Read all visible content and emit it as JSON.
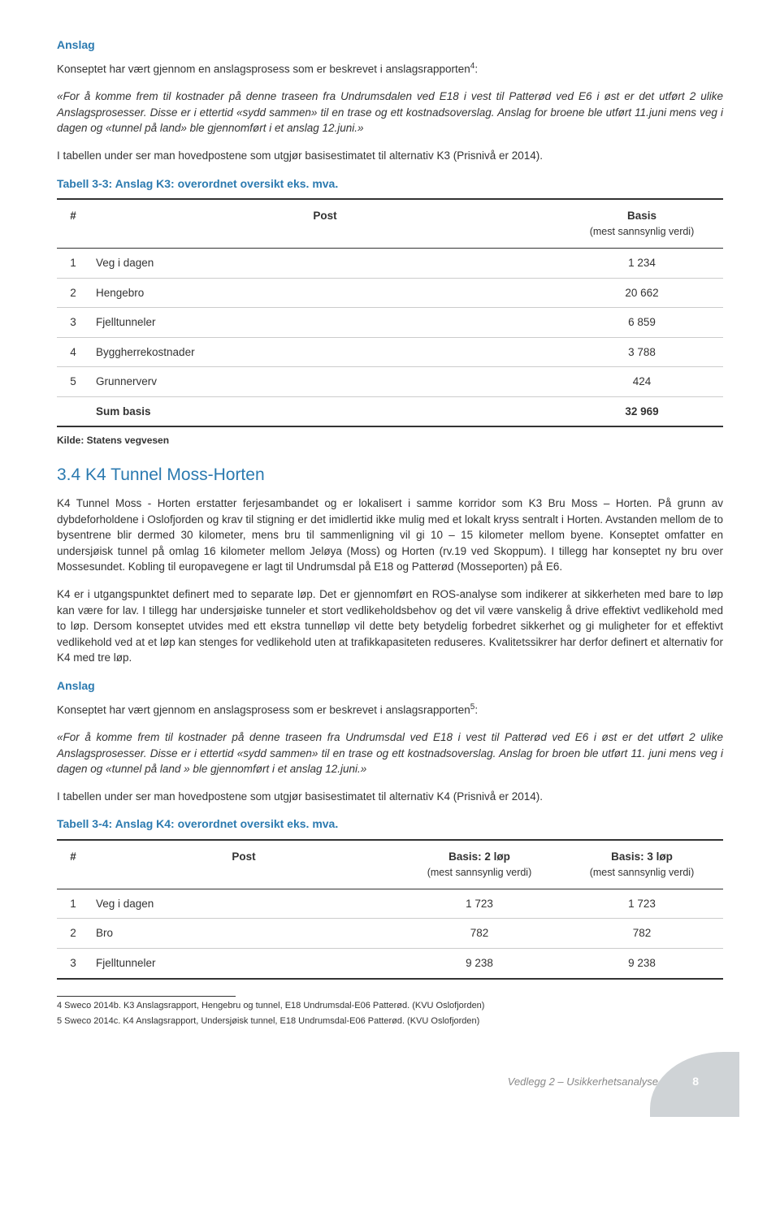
{
  "anslag1": {
    "heading": "Anslag",
    "p1": "Konseptet har vært gjennom en anslagsprosess som er beskrevet i anslagsrapporten",
    "sup1": "4",
    "p1b": ":",
    "quote": "«For å komme frem til kostnader på denne traseen fra Undrumsdalen ved E18 i vest til Patterød ved E6 i øst er det utført 2 ulike Anslagsprosesser. Disse er i ettertid «sydd sammen» til en trase og ett kostnadsoverslag. Anslag for broene ble utført 11.juni mens veg i dagen og «tunnel på land» ble gjennomført i et anslag 12.juni.»",
    "p2": "I tabellen under ser man hovedpostene som utgjør basisestimatet til alternativ K3 (Prisnivå er 2014)."
  },
  "table33": {
    "caption": "Tabell 3-3: Anslag K3: overordnet oversikt eks. mva.",
    "head_num": "#",
    "head_post": "Post",
    "head_basis": "Basis",
    "head_basis_sub": "(mest sannsynlig verdi)",
    "rows": [
      {
        "n": "1",
        "post": "Veg i dagen",
        "val": "1 234"
      },
      {
        "n": "2",
        "post": "Hengebro",
        "val": "20 662"
      },
      {
        "n": "3",
        "post": "Fjelltunneler",
        "val": "6 859"
      },
      {
        "n": "4",
        "post": "Byggherrekostnader",
        "val": "3 788"
      },
      {
        "n": "5",
        "post": "Grunnerverv",
        "val": "424"
      }
    ],
    "sum_label": "Sum basis",
    "sum_val": "32 969",
    "kilde": "Kilde: Statens vegvesen"
  },
  "section34": {
    "heading": "3.4 K4 Tunnel Moss-Horten",
    "p1": "K4 Tunnel Moss - Horten erstatter ferjesambandet og er lokalisert i samme korridor som K3 Bru Moss – Horten. På grunn av dybdeforholdene i Oslofjorden og krav til stigning er det imidlertid ikke mulig med et lokalt kryss sentralt i Horten. Avstanden mellom de to bysentrene blir dermed 30 kilometer, mens bru til sammenligning vil gi 10 – 15 kilometer mellom byene. Konseptet omfatter en undersjøisk tunnel på omlag 16 kilometer mellom Jeløya (Moss) og Horten (rv.19 ved Skoppum). I tillegg har konseptet ny bru over Mossesundet. Kobling til europavegene er lagt til Undrumsdal på E18 og Patterød (Mosseporten) på E6.",
    "p2": "K4 er i utgangspunktet definert med to separate løp. Det er gjennomført en ROS-analyse som indikerer at sikkerheten med bare to løp kan være for lav. I tillegg har undersjøiske tunneler et stort vedlikeholdsbehov og det vil være vanskelig å drive effektivt vedlikehold med to løp. Dersom konseptet utvides med ett ekstra tunnelløp vil dette bety betydelig forbedret sikkerhet og gi muligheter for et effektivt vedlikehold ved at et løp kan stenges for vedlikehold uten at trafikkapasiteten reduseres. Kvalitetssikrer har derfor definert et alternativ for K4 med tre løp."
  },
  "anslag2": {
    "heading": "Anslag",
    "p1a": "Konseptet har vært gjennom en anslagsprosess som er beskrevet i anslagsrapporten",
    "sup": "5",
    "p1b": ":",
    "quote": "«For å komme frem til kostnader på denne traseen fra Undrumsdal ved E18 i vest til Patterød ved E6 i øst er det utført 2 ulike Anslagsprosesser. Disse er i ettertid «sydd sammen» til en trase og ett kostnadsoverslag. Anslag for broen ble utført 11. juni mens veg i dagen og «tunnel på land » ble gjennomført i et anslag 12.juni.»",
    "p2": "I tabellen under ser man hovedpostene som utgjør basisestimatet til alternativ K4 (Prisnivå er 2014)."
  },
  "table34": {
    "caption": "Tabell 3-4: Anslag K4: overordnet oversikt eks. mva.",
    "head_num": "#",
    "head_post": "Post",
    "head_b2": "Basis: 2 løp",
    "head_b3": "Basis: 3 løp",
    "head_sub": "(mest sannsynlig verdi)",
    "rows": [
      {
        "n": "1",
        "post": "Veg i dagen",
        "v2": "1 723",
        "v3": "1 723"
      },
      {
        "n": "2",
        "post": "Bro",
        "v2": "782",
        "v3": "782"
      },
      {
        "n": "3",
        "post": "Fjelltunneler",
        "v2": "9 238",
        "v3": "9 238"
      }
    ]
  },
  "footnotes": {
    "f4": "4 Sweco 2014b. K3 Anslagsrapport, Hengebru og tunnel, E18 Undrumsdal-E06 Patterød. (KVU Oslofjorden)",
    "f5": "5 Sweco 2014c. K4 Anslagsrapport, Undersjøisk tunnel, E18 Undrumsdal-E06 Patterød. (KVU Oslofjorden)"
  },
  "footer": {
    "text": "Vedlegg 2 – Usikkerhetsanalyse",
    "page": "8"
  }
}
